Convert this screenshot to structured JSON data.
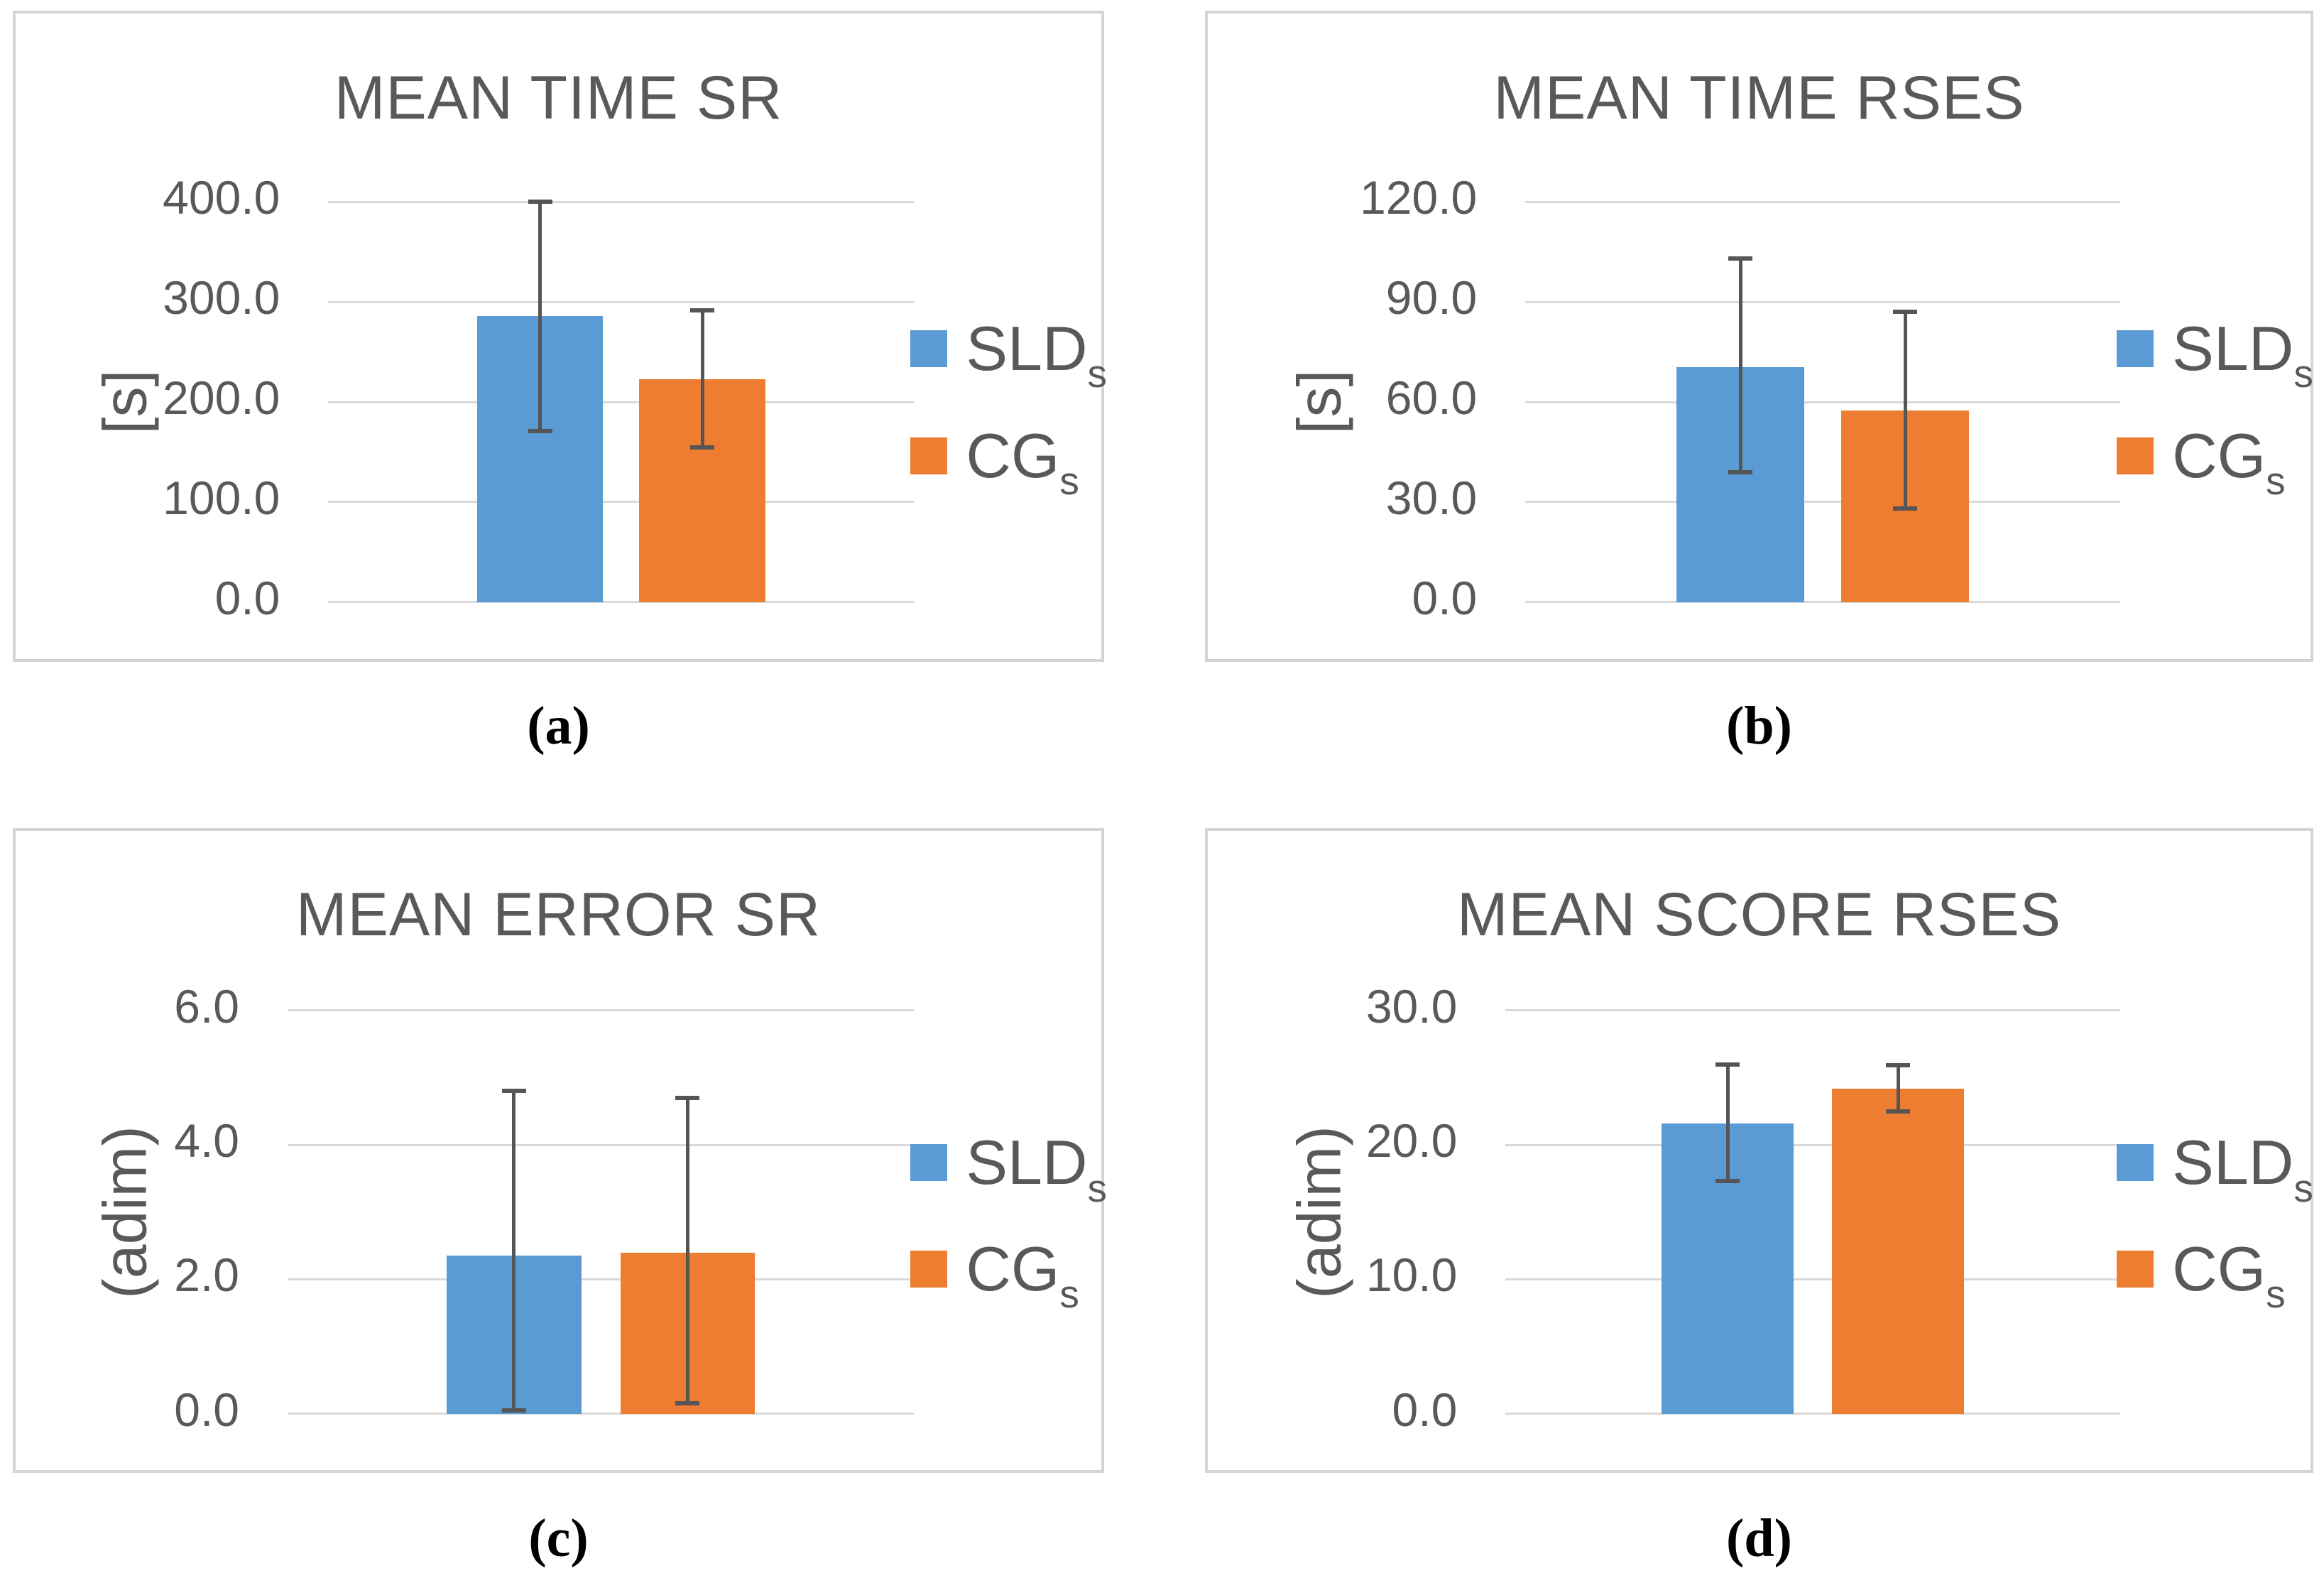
{
  "figure": {
    "background": "#ffffff",
    "description": "Four Excel-style bar charts comparing SLDs and CGs groups with error bars"
  },
  "colors": {
    "slds_blue": "#5B9BD5",
    "cgs_orange": "#ED7D31",
    "text_gray": "#595959",
    "gridline_gray": "#D9D9D9",
    "error_bar_gray": "#555555",
    "panel_border_gray": "#D4D4D4"
  },
  "legend": {
    "position": "right",
    "items": [
      {
        "label": "SLD",
        "subscript": "s",
        "color": "#5B9BD5"
      },
      {
        "label": "CG",
        "subscript": "s",
        "color": "#ED7D31"
      }
    ]
  },
  "chart_data": [
    {
      "id": "a",
      "type": "bar",
      "title": "MEAN TIME SR",
      "caption": "(a)",
      "xlabel": "",
      "ylabel": "[s]",
      "ylim": [
        0,
        400
      ],
      "yticks": [
        0,
        100,
        200,
        300,
        400
      ],
      "ytick_labels": [
        "0.0",
        "100.0",
        "200.0",
        "300.0",
        "400.0"
      ],
      "grid": true,
      "legend_position": "right",
      "series": [
        {
          "name": "SLDs",
          "value": 286,
          "error_low": 171,
          "error_high": 400
        },
        {
          "name": "CGs",
          "value": 223,
          "error_low": 155,
          "error_high": 292
        }
      ]
    },
    {
      "id": "b",
      "type": "bar",
      "title": "MEAN TIME RSES",
      "caption": "(b)",
      "xlabel": "",
      "ylabel": "[s]",
      "ylim": [
        0,
        120
      ],
      "yticks": [
        0,
        30,
        60,
        90,
        120
      ],
      "ytick_labels": [
        "0.0",
        "30.0",
        "60.0",
        "90.0",
        "120.0"
      ],
      "grid": true,
      "legend_position": "right",
      "series": [
        {
          "name": "SLDs",
          "value": 70.5,
          "error_low": 39,
          "error_high": 103
        },
        {
          "name": "CGs",
          "value": 57.5,
          "error_low": 28,
          "error_high": 87
        }
      ]
    },
    {
      "id": "c",
      "type": "bar",
      "title": "MEAN ERROR SR",
      "caption": "(c)",
      "xlabel": "",
      "ylabel": "(adim)",
      "ylim": [
        0,
        6
      ],
      "yticks": [
        0,
        2,
        4,
        6
      ],
      "ytick_labels": [
        "0.0",
        "2.0",
        "4.0",
        "6.0"
      ],
      "grid": true,
      "legend_position": "right",
      "series": [
        {
          "name": "SLDs",
          "value": 2.35,
          "error_low": 0.05,
          "error_high": 4.8
        },
        {
          "name": "CGs",
          "value": 2.4,
          "error_low": 0.15,
          "error_high": 4.7
        }
      ]
    },
    {
      "id": "d",
      "type": "bar",
      "title": "MEAN SCORE RSES",
      "caption": "(d)",
      "xlabel": "",
      "ylabel": "(adim)",
      "ylim": [
        0,
        30
      ],
      "yticks": [
        0,
        10,
        20,
        30
      ],
      "ytick_labels": [
        "0.0",
        "10.0",
        "20.0",
        "30.0"
      ],
      "grid": true,
      "legend_position": "right",
      "series": [
        {
          "name": "SLDs",
          "value": 21.6,
          "error_low": 17.3,
          "error_high": 26.0
        },
        {
          "name": "CGs",
          "value": 24.2,
          "error_low": 22.5,
          "error_high": 25.9
        }
      ]
    }
  ]
}
